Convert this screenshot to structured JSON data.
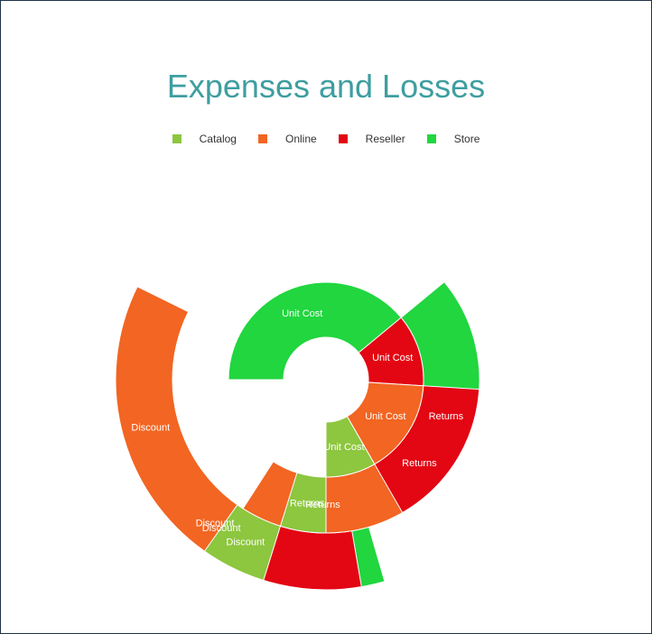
{
  "chart_data": {
    "type": "sunburst",
    "title": "Expenses and Losses",
    "legend": {
      "position": "top",
      "items": [
        {
          "name": "Catalog",
          "color": "#8dc63f"
        },
        {
          "name": "Online",
          "color": "#f26522"
        },
        {
          "name": "Reseller",
          "color": "#e30613"
        },
        {
          "name": "Store",
          "color": "#21d63f"
        }
      ]
    },
    "rings": [
      "Unit Cost",
      "Returns",
      "Discount"
    ],
    "series": [
      {
        "name": "Store",
        "color": "#21d63f",
        "start": 0,
        "values": {
          "Unit Cost": 0.39,
          "Returns": 0.315,
          "Discount": 0.285
        }
      },
      {
        "name": "Reseller",
        "color": "#e30613",
        "start": 0.39,
        "values": {
          "Unit Cost": 0.12,
          "Returns": 0.213,
          "Discount": 0.263
        }
      },
      {
        "name": "Online",
        "color": "#f26522",
        "start": 0.51,
        "values": {
          "Unit Cost": 0.157,
          "Returns": 0.174,
          "Discount": 0.232
        }
      },
      {
        "name": "Catalog",
        "color": "#8dc63f",
        "start": 0.667,
        "values": {
          "Unit Cost": 0.083,
          "Returns": 0.048,
          "Discount": 0.05
        }
      }
    ]
  }
}
